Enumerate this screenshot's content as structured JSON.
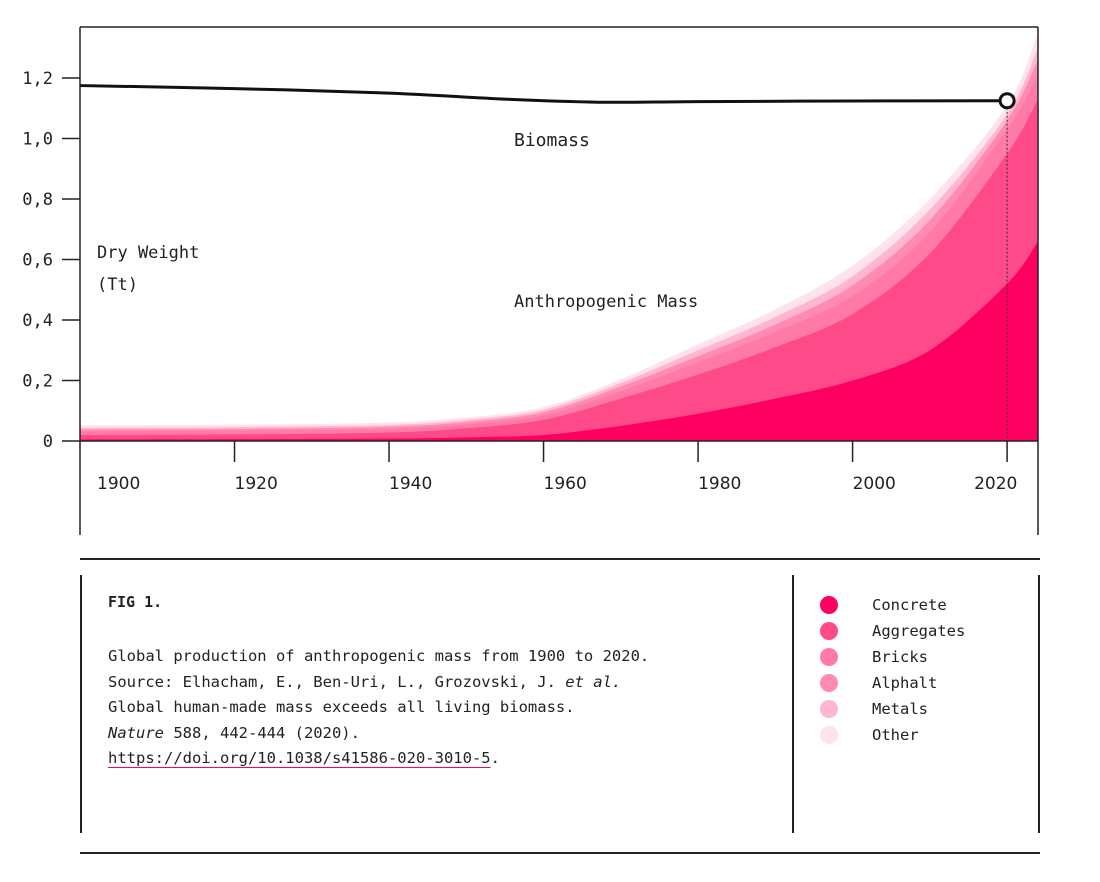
{
  "chart_data": {
    "type": "area",
    "stacked": true,
    "ylabel": [
      "Dry Weight",
      "(Tt)"
    ],
    "xlim": [
      1900,
      2024
    ],
    "ylim": [
      0,
      1.37
    ],
    "x_ticks": [
      "1900",
      "1920",
      "1940",
      "1960",
      "1980",
      "2000",
      "2020"
    ],
    "x_tick_values": [
      1900,
      1920,
      1940,
      1960,
      1980,
      2000,
      2020
    ],
    "y_ticks": [
      "0",
      "0,2",
      "0,4",
      "0,6",
      "0,8",
      "1,0",
      "1,2"
    ],
    "y_tick_values": [
      0,
      0.2,
      0.4,
      0.6,
      0.8,
      1.0,
      1.2
    ],
    "grid": false,
    "annotations": {
      "biomass": "Biomass",
      "anthropogenic": "Anthropogenic Mass"
    },
    "highlight_year": 2020,
    "x": [
      1900,
      1920,
      1940,
      1950,
      1960,
      1970,
      1980,
      1990,
      2000,
      2010,
      2020,
      2024
    ],
    "series": [
      {
        "name": "Concrete",
        "color": "#ff0060",
        "values": [
          0.005,
          0.006,
          0.008,
          0.012,
          0.02,
          0.05,
          0.09,
          0.14,
          0.2,
          0.3,
          0.52,
          0.66
        ]
      },
      {
        "name": "Aggregates",
        "color": "#ff4a8a",
        "values": [
          0.015,
          0.016,
          0.02,
          0.03,
          0.05,
          0.09,
          0.13,
          0.17,
          0.22,
          0.32,
          0.43,
          0.47
        ]
      },
      {
        "name": "Bricks",
        "color": "#ff7aa6",
        "values": [
          0.012,
          0.012,
          0.012,
          0.013,
          0.015,
          0.025,
          0.04,
          0.05,
          0.06,
          0.07,
          0.08,
          0.08
        ]
      },
      {
        "name": "Alphalt",
        "color": "#ff8ab2",
        "values": [
          0.006,
          0.006,
          0.007,
          0.008,
          0.01,
          0.015,
          0.02,
          0.025,
          0.035,
          0.04,
          0.03,
          0.05
        ]
      },
      {
        "name": "Metals",
        "color": "#ffb6ce",
        "values": [
          0.006,
          0.006,
          0.006,
          0.007,
          0.008,
          0.012,
          0.02,
          0.025,
          0.03,
          0.035,
          0.02,
          0.04
        ]
      },
      {
        "name": "Other",
        "color": "#ffe3ec",
        "values": [
          0.008,
          0.008,
          0.008,
          0.008,
          0.009,
          0.012,
          0.02,
          0.025,
          0.035,
          0.035,
          0.03,
          0.05
        ]
      }
    ],
    "biomass": {
      "name": "Biomass",
      "x": [
        1900,
        1920,
        1940,
        1955,
        1967,
        1980,
        2000,
        2020
      ],
      "values": [
        1.175,
        1.165,
        1.15,
        1.13,
        1.12,
        1.122,
        1.124,
        1.125
      ]
    }
  },
  "caption": {
    "fig": "FIG 1.",
    "line1": "Global production of anthropogenic mass from 1900 to 2020.",
    "line2a": "Source: Elhacham, E., Ben-Uri, L., Grozovski, J. ",
    "line2b": "et al.",
    "line3": "Global human-made mass exceeds all living biomass.",
    "line4a": "Nature",
    "line4b": " 588, 442-444 (2020).",
    "link": "https://doi.org/10.1038/s41586-020-3010-5",
    "link_end": "."
  },
  "legend": [
    "Concrete",
    "Aggregates",
    "Bricks",
    "Alphalt",
    "Metals",
    "Other"
  ]
}
